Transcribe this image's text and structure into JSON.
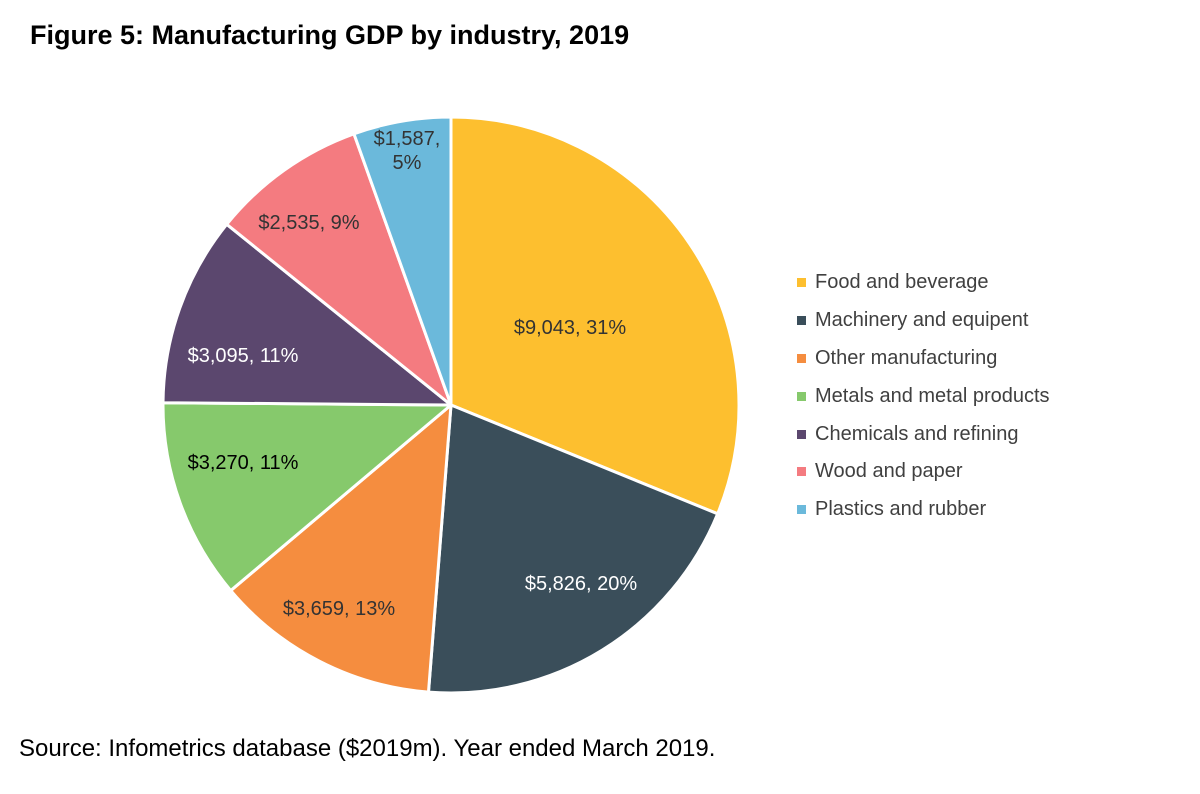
{
  "title": "Figure 5: Manufacturing GDP by industry, 2019",
  "source": "Source: Infometrics database ($2019m). Year ended March 2019.",
  "chart_data": {
    "type": "pie",
    "title": "Figure 5: Manufacturing GDP by industry, 2019",
    "legend_position": "right",
    "start_angle_deg": 0,
    "direction": "clockwise",
    "slices": [
      {
        "name": "Food and beverage",
        "value": 9043,
        "percent": 31,
        "label": [
          "$9,043, 31%"
        ],
        "color": "#FDBF2F",
        "label_color": "#333333"
      },
      {
        "name": "Machinery and equipent",
        "value": 5826,
        "percent": 20,
        "label": [
          "$5,826, 20%"
        ],
        "color": "#3A4E5A",
        "label_color": "#FFFFFF"
      },
      {
        "name": "Other manufacturing",
        "value": 3659,
        "percent": 13,
        "label": [
          "$3,659, 13%"
        ],
        "color": "#F58D3F",
        "label_color": "#333333"
      },
      {
        "name": "Metals and metal products",
        "value": 3270,
        "percent": 11,
        "label": [
          "$3,270, 11%"
        ],
        "color": "#86C96C",
        "label_color": "#000000"
      },
      {
        "name": "Chemicals and refining",
        "value": 3095,
        "percent": 11,
        "label": [
          "$3,095, 11%"
        ],
        "color": "#5B476E",
        "label_color": "#FFFFFF"
      },
      {
        "name": "Wood and paper",
        "value": 2535,
        "percent": 9,
        "label": [
          "$2,535, 9%"
        ],
        "color": "#F47B80",
        "label_color": "#333333"
      },
      {
        "name": "Plastics and rubber",
        "value": 1587,
        "percent": 5,
        "label": [
          "$1,587,",
          "5%"
        ],
        "color": "#6BB9DB",
        "label_color": "#333333"
      }
    ]
  }
}
